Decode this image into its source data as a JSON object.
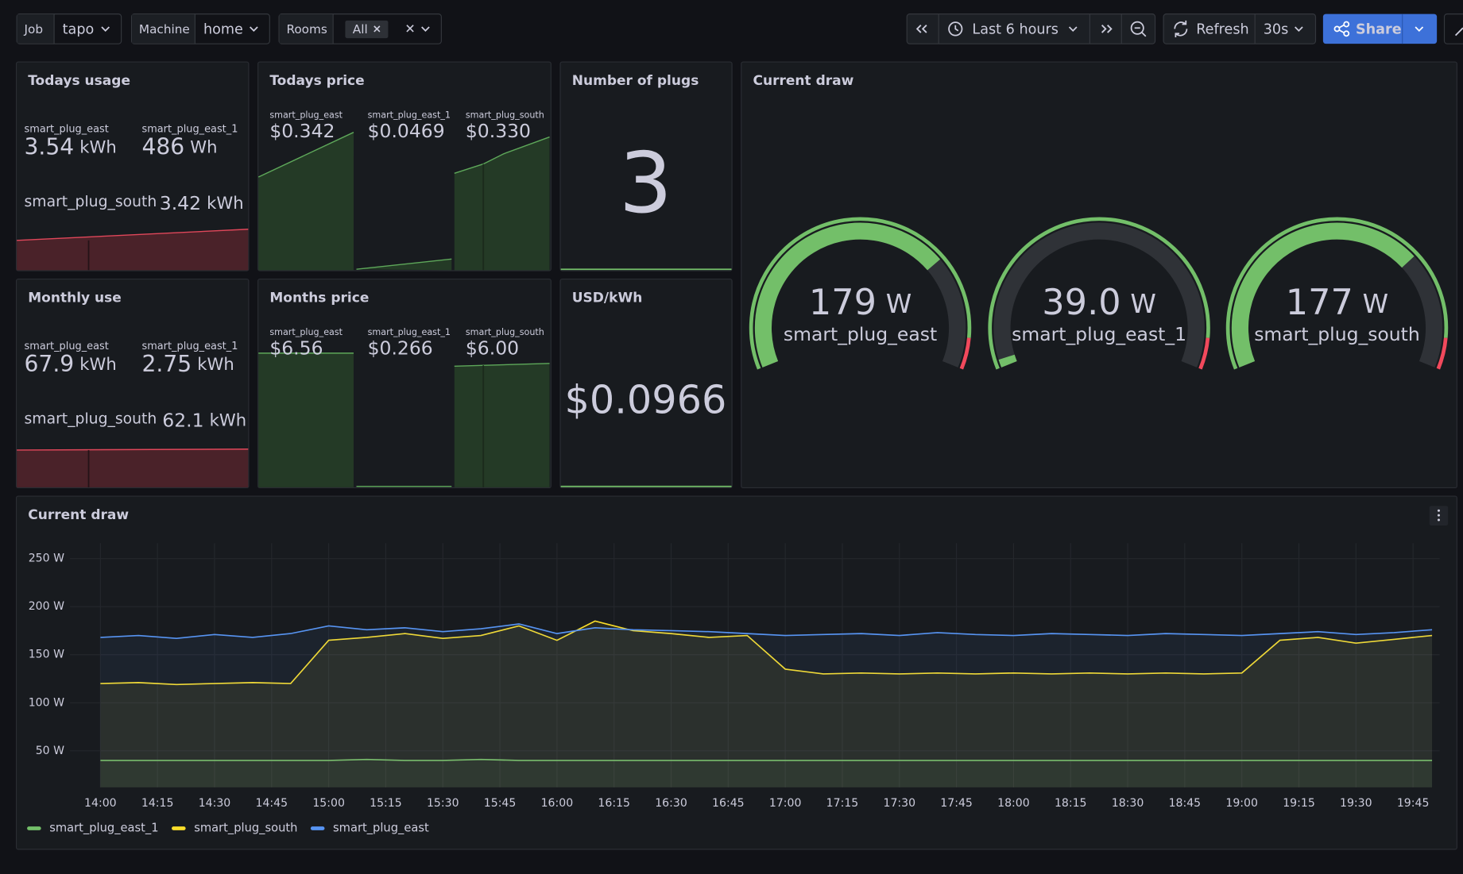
{
  "toolbar": {
    "variables": [
      {
        "label": "Job",
        "value": "tapo"
      },
      {
        "label": "Machine",
        "value": "home"
      },
      {
        "label": "Rooms",
        "value": "All"
      }
    ],
    "time_range": "Last 6 hours",
    "refresh_button": "Refresh",
    "refresh_interval": "30s",
    "share_button": "Share"
  },
  "todays_usage": {
    "title": "Todays usage",
    "stats": [
      {
        "name": "smart_plug_east",
        "value": "3.54",
        "unit": "kWh"
      },
      {
        "name": "smart_plug_east_1",
        "value": "486",
        "unit": "Wh"
      },
      {
        "name": "smart_plug_south",
        "value": "3.42",
        "unit": "kWh"
      }
    ]
  },
  "monthly_use": {
    "title": "Monthly use",
    "stats": [
      {
        "name": "smart_plug_east",
        "value": "67.9",
        "unit": "kWh"
      },
      {
        "name": "smart_plug_east_1",
        "value": "2.75",
        "unit": "kWh"
      },
      {
        "name": "smart_plug_south",
        "value": "62.1",
        "unit": "kWh"
      }
    ]
  },
  "todays_price": {
    "title": "Todays price",
    "stats": [
      {
        "name": "smart_plug_east",
        "value": "$0.342"
      },
      {
        "name": "smart_plug_east_1",
        "value": "$0.0469"
      },
      {
        "name": "smart_plug_south",
        "value": "$0.330"
      }
    ]
  },
  "months_price": {
    "title": "Months price",
    "stats": [
      {
        "name": "smart_plug_east",
        "value": "$6.56"
      },
      {
        "name": "smart_plug_east_1",
        "value": "$0.266"
      },
      {
        "name": "smart_plug_south",
        "value": "$6.00"
      }
    ]
  },
  "number_of_plugs": {
    "title": "Number of plugs",
    "value": 3
  },
  "usd_per_kwh": {
    "title": "USD/kWh",
    "value": "$0.0966"
  },
  "current_draw_gauges": {
    "title": "Current draw",
    "min": 35,
    "max": 235,
    "threshold": 220,
    "gauges": [
      {
        "name": "smart_plug_east",
        "value": 179,
        "unit": "W"
      },
      {
        "name": "smart_plug_east_1",
        "value": 39,
        "value_label": "39.0",
        "unit": "W"
      },
      {
        "name": "smart_plug_south",
        "value": 177,
        "unit": "W"
      }
    ]
  },
  "chart_data": {
    "type": "line",
    "title": "Current draw",
    "x": [
      "14:00",
      "14:10",
      "14:20",
      "14:30",
      "14:40",
      "14:50",
      "15:00",
      "15:10",
      "15:20",
      "15:30",
      "15:40",
      "15:50",
      "16:00",
      "16:10",
      "16:20",
      "16:30",
      "16:40",
      "16:50",
      "17:00",
      "17:10",
      "17:20",
      "17:30",
      "17:40",
      "17:50",
      "18:00",
      "18:10",
      "18:20",
      "18:30",
      "18:40",
      "18:50",
      "19:00",
      "19:10",
      "19:20",
      "19:30",
      "19:40",
      "19:50"
    ],
    "series": [
      {
        "name": "smart_plug_east_1",
        "color": "#73bf69",
        "values": [
          40,
          40,
          40,
          40,
          40,
          40,
          40,
          41,
          40,
          40,
          41,
          40,
          40,
          40,
          40,
          40,
          40,
          40,
          40,
          40,
          40,
          40,
          40,
          40,
          40,
          40,
          40,
          40,
          40,
          40,
          40,
          40,
          40,
          40,
          40,
          40
        ]
      },
      {
        "name": "smart_plug_south",
        "color": "#fade2a",
        "values": [
          120,
          121,
          119,
          120,
          121,
          120,
          165,
          168,
          172,
          167,
          170,
          180,
          165,
          185,
          175,
          172,
          168,
          170,
          135,
          130,
          131,
          130,
          131,
          130,
          131,
          130,
          131,
          130,
          131,
          130,
          131,
          165,
          168,
          162,
          166,
          170
        ]
      },
      {
        "name": "smart_plug_east",
        "color": "#5794f2",
        "values": [
          168,
          170,
          167,
          171,
          168,
          172,
          180,
          176,
          178,
          174,
          177,
          182,
          172,
          178,
          176,
          175,
          174,
          172,
          170,
          171,
          172,
          170,
          173,
          171,
          170,
          172,
          171,
          170,
          172,
          171,
          170,
          172,
          174,
          171,
          173,
          176
        ]
      }
    ],
    "xlim": [
      "13:52",
      "19:52"
    ],
    "xticks": [
      "14:00",
      "14:15",
      "14:30",
      "14:45",
      "15:00",
      "15:15",
      "15:30",
      "15:45",
      "16:00",
      "16:15",
      "16:30",
      "16:45",
      "17:00",
      "17:15",
      "17:30",
      "17:45",
      "18:00",
      "18:15",
      "18:30",
      "18:45",
      "19:00",
      "19:15",
      "19:30",
      "19:45"
    ],
    "ylim": [
      12,
      266
    ],
    "yticks": [
      {
        "value": 50,
        "label": "50 W"
      },
      {
        "value": 100,
        "label": "100 W"
      },
      {
        "value": 150,
        "label": "150 W"
      },
      {
        "value": 200,
        "label": "200 W"
      },
      {
        "value": 250,
        "label": "250 W"
      }
    ],
    "grid": true,
    "legend": "bottom-left"
  }
}
